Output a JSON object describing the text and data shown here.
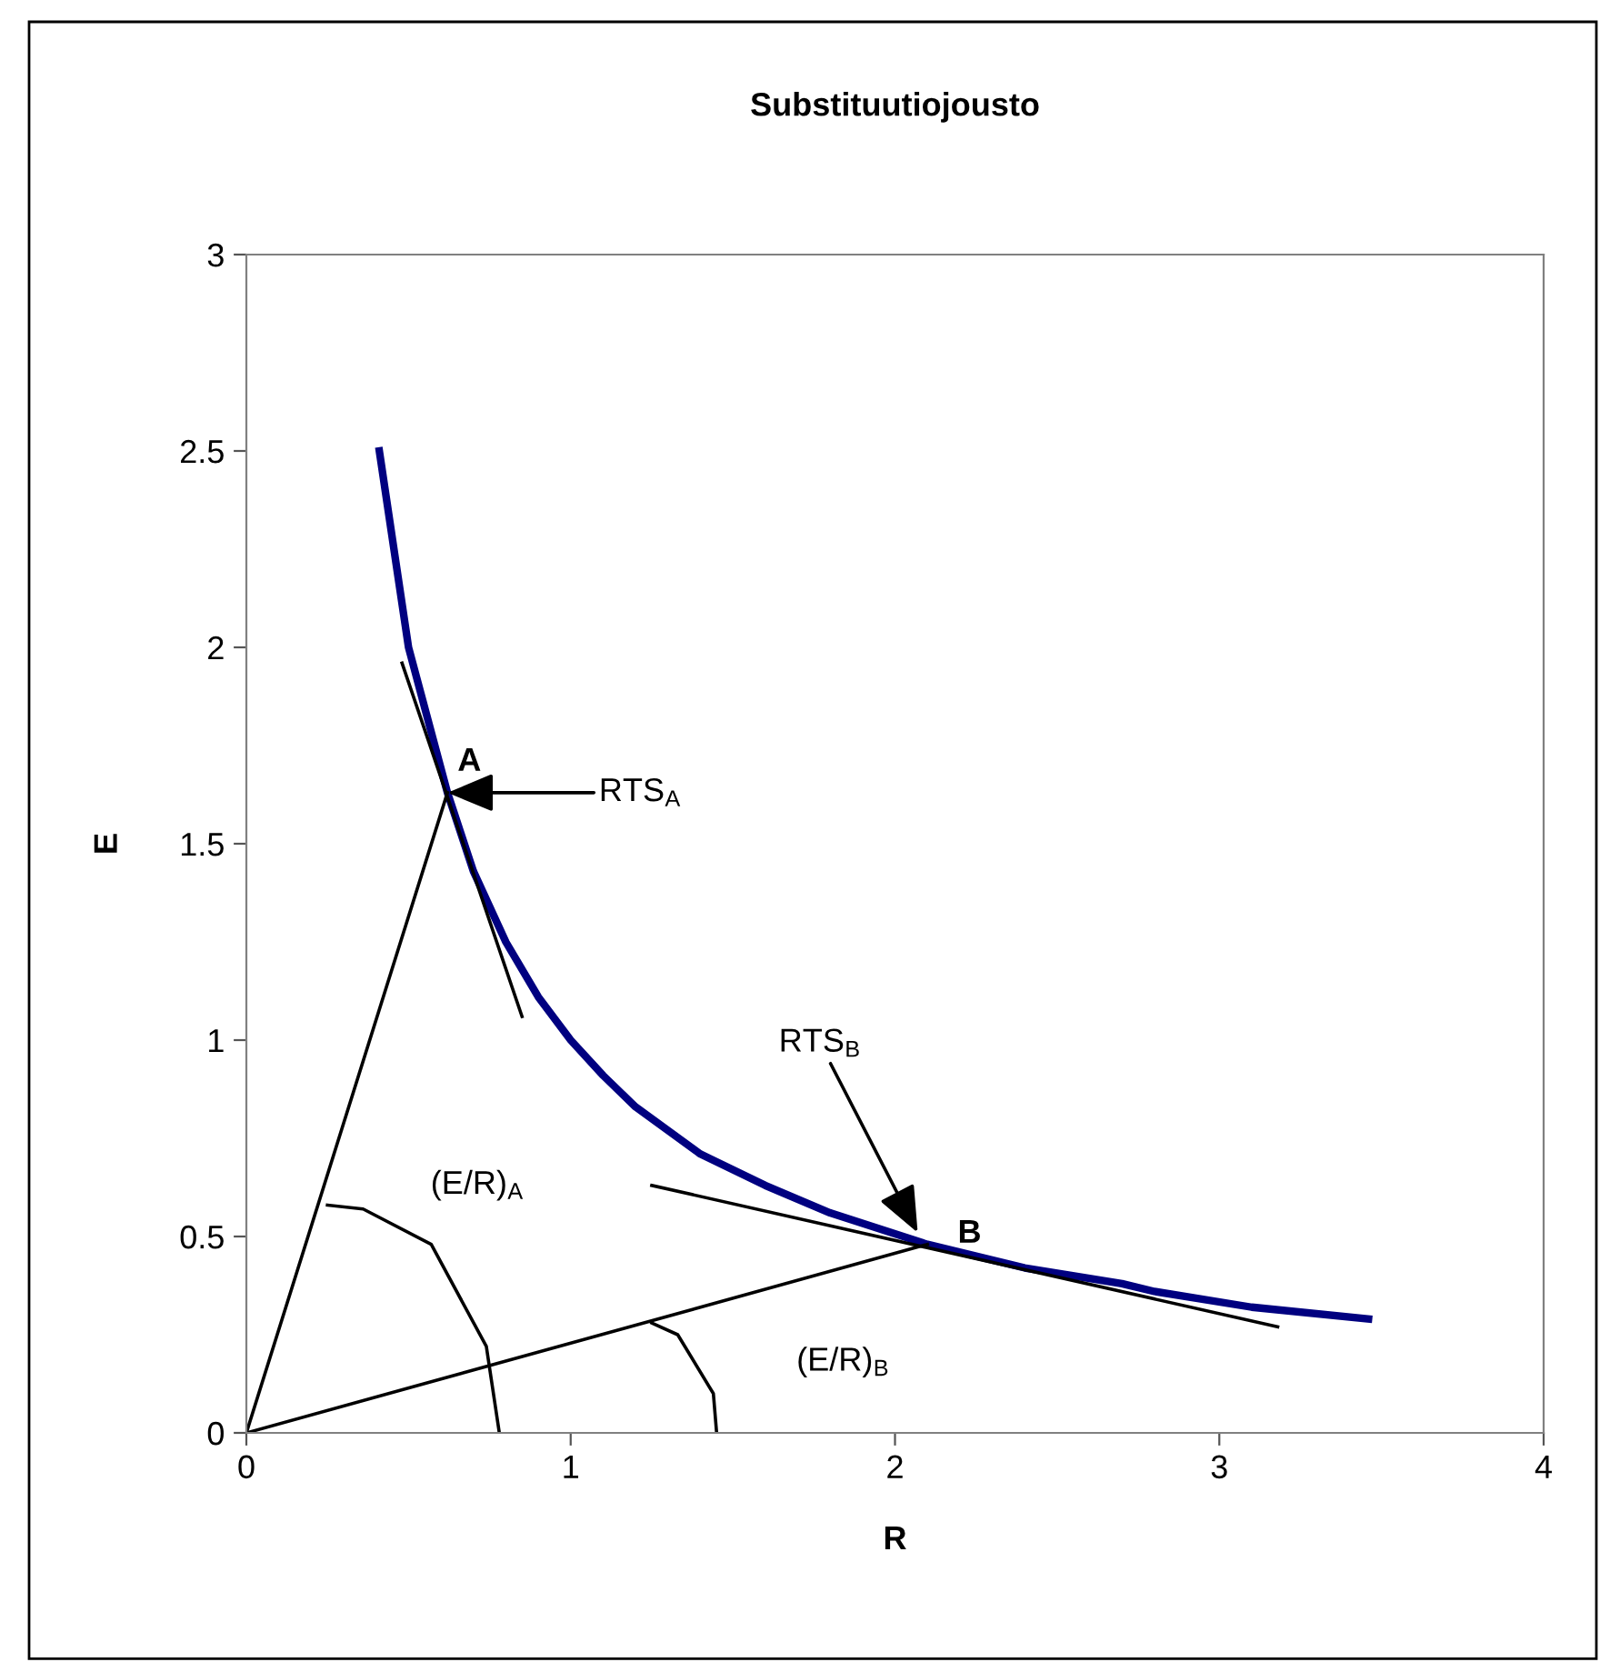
{
  "chart_data": {
    "type": "line",
    "title": "Substituutiojousto",
    "xlabel": "R",
    "ylabel": "E",
    "xlim": [
      0,
      4
    ],
    "ylim": [
      0,
      3
    ],
    "xticks": [
      0,
      1,
      2,
      3,
      4
    ],
    "yticks": [
      0,
      0.5,
      1,
      1.5,
      2,
      2.5,
      3
    ],
    "grid": false,
    "legend": false,
    "marker": "none",
    "line_style": "solid",
    "series": [
      {
        "color": "#000080",
        "x": [
          0.41,
          0.5,
          0.62,
          0.7,
          0.8,
          0.9,
          1.0,
          1.1,
          1.2,
          1.4,
          1.6,
          1.8,
          2.1,
          2.4,
          2.7,
          2.8,
          3.1,
          3.46
        ],
        "values": [
          2.5,
          2.0,
          1.63,
          1.43,
          1.25,
          1.11,
          1.0,
          0.91,
          0.83,
          0.71,
          0.63,
          0.56,
          0.48,
          0.42,
          0.38,
          0.36,
          0.32,
          0.29
        ]
      },
      {
        "color": "#000000",
        "x": [
          0.48,
          0.85
        ],
        "values": [
          1.96,
          1.06
        ]
      },
      {
        "color": "#000000",
        "x": [
          1.25,
          3.18
        ],
        "values": [
          0.63,
          0.27
        ]
      },
      {
        "color": "#000000",
        "x": [
          0,
          0.62
        ],
        "values": [
          0,
          1.63
        ]
      },
      {
        "color": "#000000",
        "x": [
          0,
          2.1
        ],
        "values": [
          0,
          0.48
        ]
      },
      {
        "color": "#000000",
        "x": [
          0.25,
          0.36,
          0.57,
          0.74,
          0.78
        ],
        "values": [
          0.58,
          0.57,
          0.48,
          0.22,
          0
        ]
      },
      {
        "color": "#000000",
        "x": [
          1.25,
          1.33,
          1.44,
          1.45
        ],
        "values": [
          0.28,
          0.25,
          0.1,
          0
        ]
      }
    ],
    "annotations": [
      {
        "text": "A",
        "x": 0.62,
        "y": 1.63
      },
      {
        "text": "B",
        "x": 2.1,
        "y": 0.48
      },
      "RTS$_{A}$",
      {
        "text": "RTS$_{B}$",
        "x": 2.07,
        "y": 0.51
      },
      "(E/R)$_{A}$",
      "(E/R)$_{B}$"
    ]
  }
}
